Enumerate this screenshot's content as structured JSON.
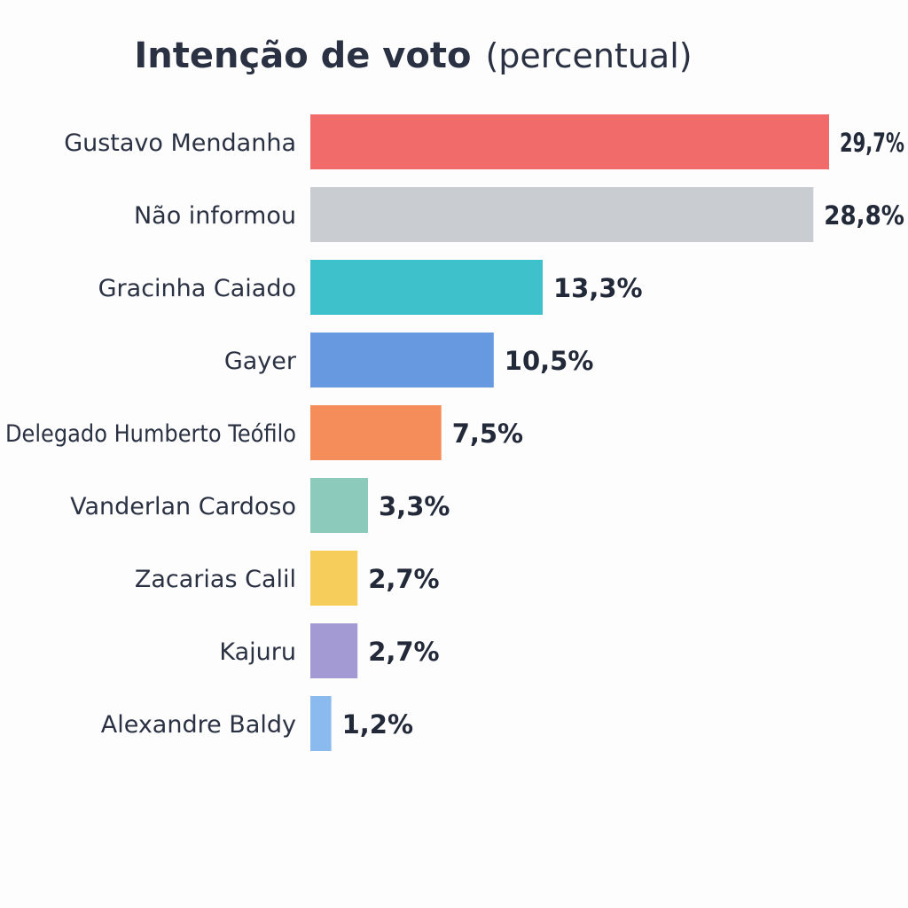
{
  "chart_data": {
    "type": "bar",
    "orientation": "horizontal",
    "title": "Intenção de voto",
    "subtitle": "(percentual)",
    "categories": [
      "Gustavo Mendanha",
      "Não informou",
      "Gracinha Caiado",
      "Gayer",
      "Delegado Humberto Teófilo",
      "Vanderlan Cardoso",
      "Zacarias Calil",
      "Kajuru",
      "Alexandre Baldy"
    ],
    "values": [
      29.7,
      28.8,
      13.3,
      10.5,
      7.5,
      3.3,
      2.7,
      2.7,
      1.2
    ],
    "value_labels": [
      "29,7%",
      "28,8%",
      "13,3%",
      "10,5%",
      "7,5%",
      "3,3%",
      "2,7%",
      "2,7%",
      "1,2%"
    ],
    "colors": [
      "#f26b6b",
      "#c9cdd2",
      "#3fc1cb",
      "#6699e0",
      "#f58d5a",
      "#8ccbbb",
      "#f6cd5b",
      "#a39ad4",
      "#8bbbee"
    ],
    "xlim": [
      0,
      29.7
    ],
    "grid": false,
    "legend": "none"
  }
}
